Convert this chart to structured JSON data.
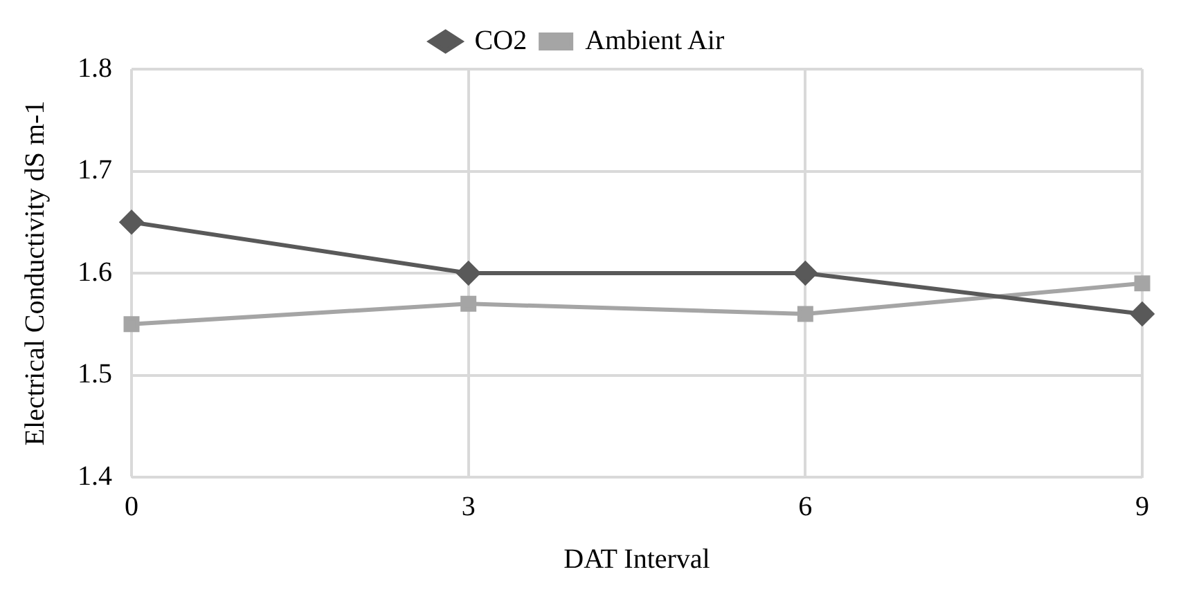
{
  "chart_data": {
    "type": "line",
    "xlabel": "DAT Interval",
    "ylabel": "Electrical Conductivity dS m-1",
    "categories": [
      "0",
      "3",
      "6",
      "9"
    ],
    "series": [
      {
        "name": "CO2",
        "color": "#595959",
        "marker": "diamond",
        "values": [
          1.65,
          1.6,
          1.6,
          1.56
        ]
      },
      {
        "name": "Ambient Air",
        "color": "#a5a5a5",
        "marker": "square",
        "values": [
          1.55,
          1.57,
          1.56,
          1.59
        ]
      }
    ],
    "ylim": [
      1.4,
      1.8
    ],
    "yticks": [
      1.4,
      1.5,
      1.6,
      1.7,
      1.8
    ],
    "grid": true,
    "legend": "top",
    "line_style": "solid"
  }
}
